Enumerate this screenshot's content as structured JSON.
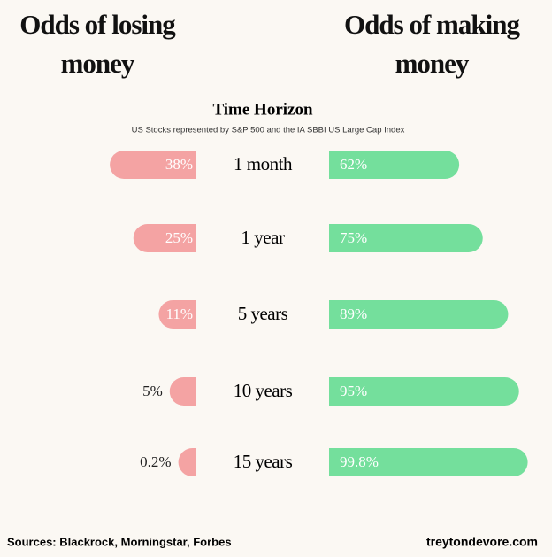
{
  "chart_data": {
    "type": "bar",
    "left_header": "Odds of losing money",
    "right_header": "Odds of making money",
    "title": "Time Horizon",
    "subtitle": "US Stocks represented by S&P 500 and the IA SBBI US Large Cap Index",
    "categories": [
      "1 month",
      "1 year",
      "5 years",
      "10 years",
      "15 years"
    ],
    "series": [
      {
        "color": "#f4a3a3",
        "values": [
          38,
          25,
          11,
          5,
          0.2
        ],
        "value_labels": [
          "38%",
          "25%",
          "11%",
          "5%",
          "0.2%"
        ]
      },
      {
        "color": "#74df9c",
        "values": [
          62,
          75,
          89,
          95,
          99.8
        ],
        "value_labels": [
          "62%",
          "75%",
          "89%",
          "95%",
          "99.8%"
        ]
      }
    ],
    "source": "Sources: Blackrock, Morningstar, Forbes",
    "credit": "treytondevore.com"
  }
}
